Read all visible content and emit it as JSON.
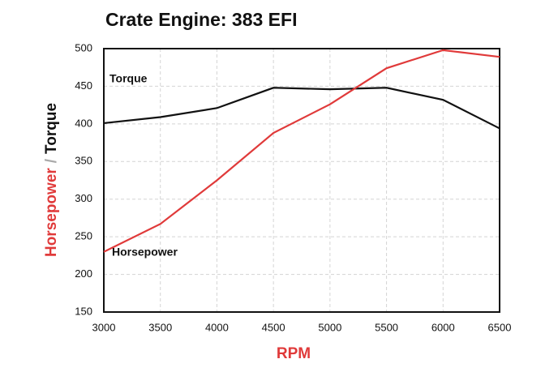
{
  "chart_data": {
    "type": "line",
    "title": "Crate Engine: 383 EFI",
    "xlabel": "RPM",
    "ylabel": [
      {
        "text": "Horsepower",
        "color": "#e03a3a"
      },
      {
        "text": "/",
        "color": "#aaaaaa"
      },
      {
        "text": "Torque",
        "color": "#111111"
      }
    ],
    "x": [
      3000,
      3500,
      4000,
      4500,
      5000,
      5500,
      6000,
      6500
    ],
    "series": [
      {
        "name": "Torque",
        "color": "#111111",
        "values": [
          401,
          409,
          421,
          448,
          446,
          448,
          432,
          394
        ]
      },
      {
        "name": "Horsepower",
        "color": "#e03a3a",
        "values": [
          230,
          267,
          325,
          388,
          426,
          474,
          498,
          489
        ]
      }
    ],
    "xlim": [
      3000,
      6500
    ],
    "xticks": [
      3000,
      3500,
      4000,
      4500,
      5000,
      5500,
      6000,
      6500
    ],
    "ylim": [
      150,
      500
    ],
    "yticks": [
      150,
      200,
      250,
      300,
      350,
      400,
      450,
      500
    ],
    "grid": true
  }
}
